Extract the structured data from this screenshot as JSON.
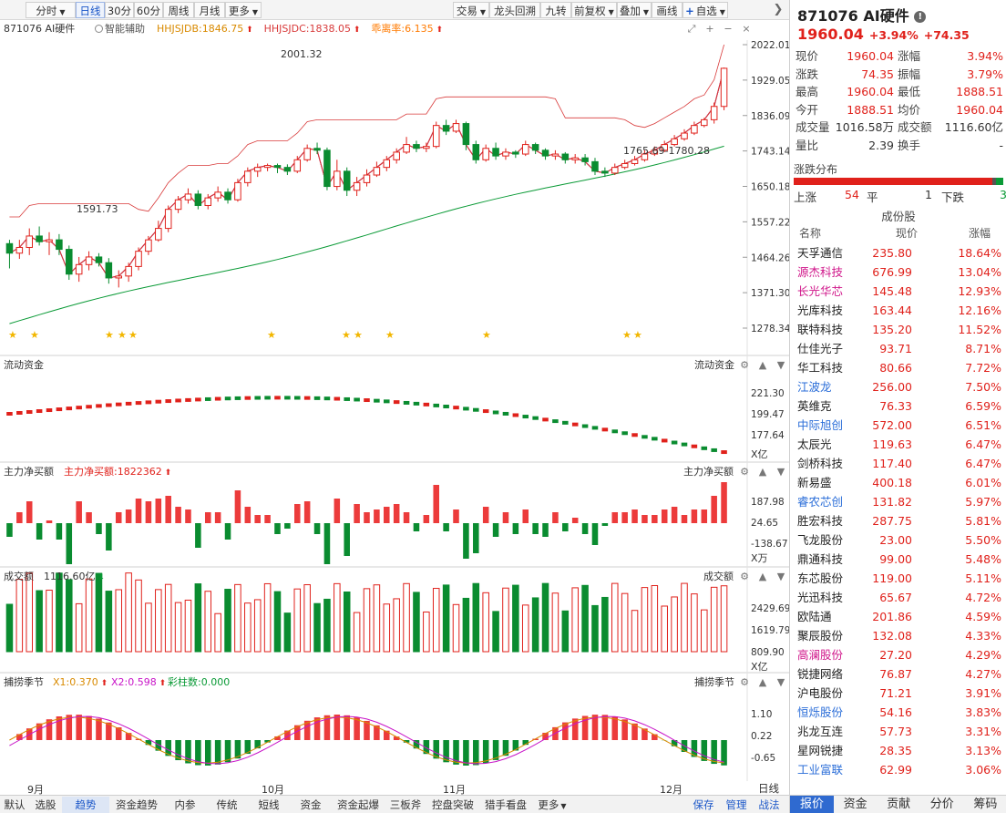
{
  "toolbar": {
    "left_buttons": [
      {
        "label": "分时",
        "caret": true,
        "active": false
      },
      {
        "label": "日线",
        "caret": false,
        "active": true
      },
      {
        "label": "30分",
        "caret": false,
        "active": false
      },
      {
        "label": "60分",
        "caret": false,
        "active": false
      },
      {
        "label": "周线",
        "caret": false,
        "active": false
      },
      {
        "label": "月线",
        "caret": false,
        "active": false
      },
      {
        "label": "更多",
        "caret": true,
        "active": false
      }
    ],
    "right_buttons": [
      {
        "label": "交易",
        "caret": true
      },
      {
        "label": "龙头回溯",
        "caret": false
      },
      {
        "label": "九转",
        "caret": false
      },
      {
        "label": "前复权",
        "caret": true
      },
      {
        "label": "叠加",
        "caret": true
      },
      {
        "label": "画线",
        "caret": false
      },
      {
        "label": "自选",
        "caret": true
      }
    ]
  },
  "main_pane": {
    "code_name": "871076 AI硬件",
    "assist_label": "智能辅助",
    "indicators": [
      {
        "text": "HHJSJDB:1846.75",
        "color": "#d98a00"
      },
      {
        "text": "HHJSJDC:1838.05",
        "color": "#d83a3a"
      },
      {
        "text": "乖离率:6.135",
        "color": "#ff7a00"
      }
    ],
    "y_ticks": [
      "2022.01",
      "1929.05",
      "1836.09",
      "1743.14",
      "1650.18",
      "1557.22",
      "1464.26",
      "1371.30",
      "1278.34"
    ],
    "annotations": {
      "high": "2001.32",
      "low": "1591.73",
      "range": "1765.69-1780.28"
    }
  },
  "flow_pane": {
    "title": "流动资金",
    "right_title": "流动资金",
    "y_ticks": [
      "221.30",
      "199.47",
      "177.64"
    ],
    "unit": "X亿"
  },
  "net_pane": {
    "title": "主力净买额",
    "indicator": "主力净买额:1822362",
    "right_title": "主力净买额",
    "y_ticks": [
      "187.98",
      "24.65",
      "-138.67"
    ],
    "unit": "X万"
  },
  "amount_pane": {
    "title": "成交额",
    "indicator": "1116.60亿",
    "right_title": "成交额",
    "y_ticks": [
      "2429.69",
      "1619.79",
      "809.90"
    ],
    "unit": "X亿"
  },
  "season_pane": {
    "title": "捕捞季节",
    "x1": "X1:0.370",
    "x2": "X2:0.598",
    "bar": "彩柱数:0.000",
    "right_title": "捕捞季节",
    "y_ticks": [
      "1.10",
      "0.22",
      "-0.65"
    ]
  },
  "x_axis": {
    "months": [
      "9月",
      "10月",
      "11月",
      "12月"
    ],
    "right_label": "日线"
  },
  "bottom_tabs": [
    "默认",
    "选股",
    "趋势",
    "资金趋势",
    "内参",
    "传统",
    "短线",
    "资金",
    "资金起爆",
    "三板斧",
    "控盘突破",
    "猎手看盘",
    "更多",
    "保存",
    "管理",
    "战法"
  ],
  "active_bottom_tab": "趋势",
  "quote": {
    "code_name": "871076 AI硬件",
    "price": "1960.04",
    "change_pct": "+3.94%",
    "change": "+74.35",
    "rows": [
      {
        "l1": "现价",
        "v1": "1960.04",
        "l2": "涨幅",
        "v2": "3.94%"
      },
      {
        "l1": "涨跌",
        "v1": "74.35",
        "l2": "振幅",
        "v2": "3.79%"
      },
      {
        "l1": "最高",
        "v1": "1960.04",
        "l2": "最低",
        "v2": "1888.51"
      },
      {
        "l1": "今开",
        "v1": "1888.51",
        "l2": "均价",
        "v2": "1960.04"
      },
      {
        "l1": "成交量",
        "v1": "1016.58万",
        "l2": "成交额",
        "v2": "1116.60亿"
      },
      {
        "l1": "量比",
        "v1": "2.39",
        "l2": "换手",
        "v2": "-"
      }
    ]
  },
  "distribution": {
    "title": "涨跌分布",
    "up_label": "上涨",
    "up": "54",
    "flat_label": "平",
    "flat": "1",
    "down_label": "下跌",
    "down": "3"
  },
  "constituents": {
    "title": "成份股",
    "headers": [
      "名称",
      "现价",
      "涨幅"
    ],
    "rows": [
      {
        "name": "天孚通信",
        "price": "235.80",
        "pct": "18.64%",
        "color": "#222222"
      },
      {
        "name": "源杰科技",
        "price": "676.99",
        "pct": "13.04%",
        "color": "#d0168a"
      },
      {
        "name": "长光华芯",
        "price": "145.48",
        "pct": "12.93%",
        "color": "#d0168a"
      },
      {
        "name": "光库科技",
        "price": "163.44",
        "pct": "12.16%",
        "color": "#222222"
      },
      {
        "name": "联特科技",
        "price": "135.20",
        "pct": "11.52%",
        "color": "#222222"
      },
      {
        "name": "仕佳光子",
        "price": "93.71",
        "pct": "8.71%",
        "color": "#222222"
      },
      {
        "name": "华工科技",
        "price": "80.66",
        "pct": "7.72%",
        "color": "#222222"
      },
      {
        "name": "江波龙",
        "price": "256.00",
        "pct": "7.50%",
        "color": "#2a6dd8"
      },
      {
        "name": "英维克",
        "price": "76.33",
        "pct": "6.59%",
        "color": "#222222"
      },
      {
        "name": "中际旭创",
        "price": "572.00",
        "pct": "6.51%",
        "color": "#2a6dd8"
      },
      {
        "name": "太辰光",
        "price": "119.63",
        "pct": "6.47%",
        "color": "#222222"
      },
      {
        "name": "剑桥科技",
        "price": "117.40",
        "pct": "6.47%",
        "color": "#222222"
      },
      {
        "name": "新易盛",
        "price": "400.18",
        "pct": "6.01%",
        "color": "#222222"
      },
      {
        "name": "睿农芯创",
        "price": "131.82",
        "pct": "5.97%",
        "color": "#2a6dd8"
      },
      {
        "name": "胜宏科技",
        "price": "287.75",
        "pct": "5.81%",
        "color": "#222222"
      },
      {
        "name": "飞龙股份",
        "price": "23.00",
        "pct": "5.50%",
        "color": "#222222"
      },
      {
        "name": "鼎通科技",
        "price": "99.00",
        "pct": "5.48%",
        "color": "#222222"
      },
      {
        "name": "东芯股份",
        "price": "119.00",
        "pct": "5.11%",
        "color": "#222222"
      },
      {
        "name": "光迅科技",
        "price": "65.67",
        "pct": "4.72%",
        "color": "#222222"
      },
      {
        "name": "欧陆通",
        "price": "201.86",
        "pct": "4.59%",
        "color": "#222222"
      },
      {
        "name": "聚辰股份",
        "price": "132.08",
        "pct": "4.33%",
        "color": "#222222"
      },
      {
        "name": "高澜股份",
        "price": "27.20",
        "pct": "4.29%",
        "color": "#d0168a"
      },
      {
        "name": "锐捷网络",
        "price": "76.87",
        "pct": "4.27%",
        "color": "#222222"
      },
      {
        "name": "沪电股份",
        "price": "71.21",
        "pct": "3.91%",
        "color": "#222222"
      },
      {
        "name": "恒烁股份",
        "price": "54.16",
        "pct": "3.83%",
        "color": "#2a6dd8"
      },
      {
        "name": "兆龙互连",
        "price": "57.73",
        "pct": "3.31%",
        "color": "#222222"
      },
      {
        "name": "星网锐捷",
        "price": "28.35",
        "pct": "3.13%",
        "color": "#222222"
      },
      {
        "name": "工业富联",
        "price": "62.99",
        "pct": "3.06%",
        "color": "#2a6dd8"
      }
    ]
  },
  "right_tabs": [
    "报价",
    "资金",
    "贡献",
    "分价",
    "筹码"
  ],
  "active_right_tab": "报价",
  "series": {
    "candles": [
      [
        1500,
        1475,
        1435,
        1510
      ],
      [
        1475,
        1490,
        1460,
        1510
      ],
      [
        1490,
        1520,
        1470,
        1540
      ],
      [
        1520,
        1505,
        1495,
        1545
      ],
      [
        1505,
        1510,
        1470,
        1530
      ],
      [
        1510,
        1485,
        1470,
        1525
      ],
      [
        1485,
        1420,
        1405,
        1495
      ],
      [
        1420,
        1445,
        1400,
        1465
      ],
      [
        1445,
        1465,
        1430,
        1480
      ],
      [
        1465,
        1450,
        1440,
        1475
      ],
      [
        1450,
        1410,
        1395,
        1462
      ],
      [
        1410,
        1415,
        1385,
        1430
      ],
      [
        1415,
        1440,
        1400,
        1450
      ],
      [
        1440,
        1480,
        1430,
        1490
      ],
      [
        1480,
        1510,
        1470,
        1520
      ],
      [
        1510,
        1540,
        1505,
        1560
      ],
      [
        1540,
        1590,
        1530,
        1600
      ],
      [
        1590,
        1615,
        1580,
        1625
      ],
      [
        1615,
        1630,
        1605,
        1645
      ],
      [
        1630,
        1600,
        1590,
        1640
      ],
      [
        1600,
        1620,
        1590,
        1630
      ],
      [
        1620,
        1635,
        1610,
        1650
      ],
      [
        1635,
        1615,
        1605,
        1645
      ],
      [
        1615,
        1660,
        1610,
        1670
      ],
      [
        1660,
        1690,
        1650,
        1700
      ],
      [
        1690,
        1700,
        1675,
        1710
      ],
      [
        1700,
        1705,
        1690,
        1710
      ],
      [
        1705,
        1700,
        1685,
        1710
      ],
      [
        1700,
        1690,
        1680,
        1708
      ],
      [
        1690,
        1720,
        1685,
        1730
      ],
      [
        1720,
        1750,
        1715,
        1760
      ],
      [
        1750,
        1745,
        1735,
        1765
      ],
      [
        1745,
        1650,
        1640,
        1752
      ],
      [
        1650,
        1690,
        1640,
        1720
      ],
      [
        1690,
        1640,
        1625,
        1700
      ],
      [
        1640,
        1660,
        1625,
        1675
      ],
      [
        1660,
        1680,
        1650,
        1695
      ],
      [
        1680,
        1700,
        1675,
        1715
      ],
      [
        1700,
        1720,
        1690,
        1730
      ],
      [
        1720,
        1740,
        1710,
        1750
      ],
      [
        1740,
        1760,
        1735,
        1780
      ],
      [
        1760,
        1750,
        1740,
        1770
      ],
      [
        1750,
        1755,
        1740,
        1765
      ],
      [
        1755,
        1810,
        1750,
        1820
      ],
      [
        1810,
        1795,
        1785,
        1825
      ],
      [
        1795,
        1815,
        1790,
        1825
      ],
      [
        1815,
        1760,
        1745,
        1820
      ],
      [
        1760,
        1720,
        1710,
        1770
      ],
      [
        1720,
        1750,
        1715,
        1760
      ],
      [
        1750,
        1730,
        1720,
        1765
      ],
      [
        1730,
        1740,
        1720,
        1750
      ],
      [
        1740,
        1735,
        1725,
        1745
      ],
      [
        1735,
        1760,
        1730,
        1770
      ],
      [
        1760,
        1745,
        1735,
        1765
      ],
      [
        1745,
        1730,
        1720,
        1750
      ],
      [
        1730,
        1735,
        1720,
        1745
      ],
      [
        1735,
        1720,
        1710,
        1740
      ],
      [
        1720,
        1725,
        1710,
        1735
      ],
      [
        1725,
        1715,
        1705,
        1735
      ],
      [
        1715,
        1690,
        1680,
        1725
      ],
      [
        1690,
        1685,
        1675,
        1700
      ],
      [
        1685,
        1700,
        1680,
        1710
      ],
      [
        1700,
        1710,
        1695,
        1720
      ],
      [
        1710,
        1720,
        1705,
        1730
      ],
      [
        1720,
        1735,
        1715,
        1745
      ],
      [
        1735,
        1745,
        1730,
        1755
      ],
      [
        1745,
        1760,
        1740,
        1770
      ],
      [
        1760,
        1775,
        1755,
        1785
      ],
      [
        1775,
        1790,
        1770,
        1800
      ],
      [
        1790,
        1810,
        1785,
        1820
      ],
      [
        1810,
        1825,
        1805,
        1830
      ],
      [
        1825,
        1860,
        1815,
        1870
      ],
      [
        1860,
        1960,
        1850,
        1962
      ]
    ]
  }
}
